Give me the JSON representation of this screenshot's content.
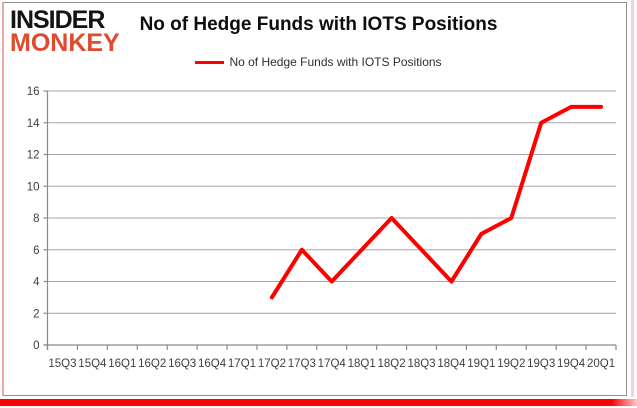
{
  "logo": {
    "line1": "INSIDER",
    "line2": "MONKEY",
    "color_top": "#141414",
    "color_bottom": "#e04a2e"
  },
  "header": {
    "title": "No of Hedge Funds with IOTS Positions"
  },
  "legend": {
    "label": "No of Hedge Funds with IOTS Positions",
    "line_color": "#fe0000"
  },
  "frame": {
    "border_color": "#8f8f8f",
    "left_accent_color": "#efa6a6",
    "right_accent_color": "#f8d2d2",
    "bottom_bar_color": "#fa0202"
  },
  "chart_data": {
    "type": "line",
    "title": "No of Hedge Funds with IOTS Positions",
    "categories": [
      "15Q3",
      "15Q4",
      "16Q1",
      "16Q2",
      "16Q3",
      "16Q4",
      "17Q1",
      "17Q2",
      "17Q3",
      "17Q4",
      "18Q1",
      "18Q2",
      "18Q3",
      "18Q4",
      "19Q1",
      "19Q2",
      "19Q3",
      "19Q4",
      "20Q1"
    ],
    "series": [
      {
        "name": "No of Hedge Funds with IOTS Positions",
        "color": "#fe0000",
        "values": [
          null,
          null,
          null,
          null,
          null,
          null,
          null,
          3,
          6,
          4,
          6,
          8,
          6,
          4,
          7,
          8,
          14,
          15,
          15
        ]
      }
    ],
    "xlabel": "",
    "ylabel": "",
    "ylim": [
      0,
      16
    ],
    "yticks": [
      0,
      2,
      4,
      6,
      8,
      10,
      12,
      14,
      16
    ],
    "grid": true,
    "legend_position": "top-center",
    "gridline_color": "#a6a6a6",
    "axis_color": "#8a8a8a",
    "tick_label_color": "#3f3f3f"
  }
}
